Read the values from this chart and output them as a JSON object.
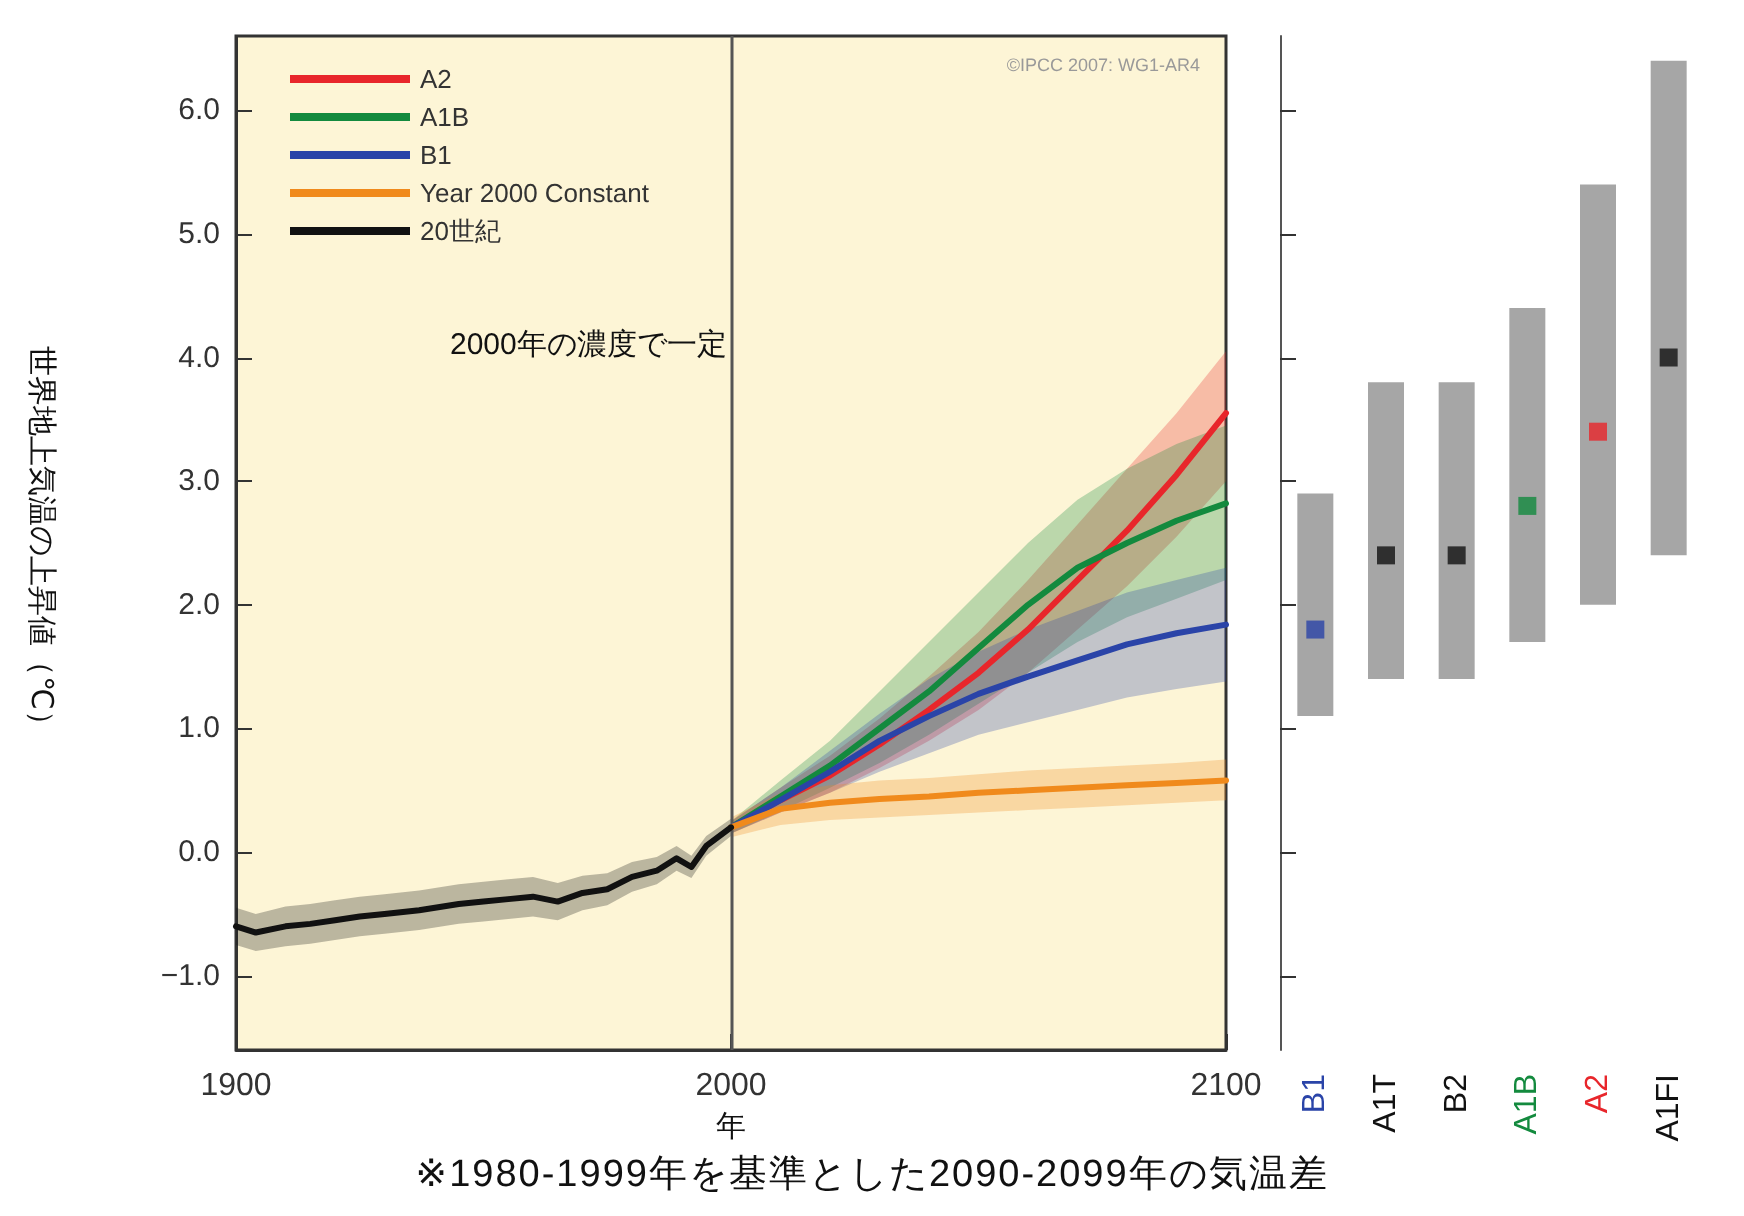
{
  "chart_data": [
    {
      "type": "line",
      "ylabel": "世界地上気温の上昇値（℃）",
      "xlabel": "年",
      "xlim": [
        1900,
        2100
      ],
      "xticks": [
        1900,
        2000,
        2100
      ],
      "ylim": [
        -1.6,
        6.6
      ],
      "yticks": [
        {
          "value": -1,
          "label": "−1.0"
        },
        {
          "value": 0,
          "label": "0.0"
        },
        {
          "value": 1,
          "label": "1.0"
        },
        {
          "value": 2,
          "label": "2.0"
        },
        {
          "value": 3,
          "label": "3.0"
        },
        {
          "value": 4,
          "label": "4.0"
        },
        {
          "value": 5,
          "label": "5.0"
        },
        {
          "value": 6,
          "label": "6.0"
        }
      ],
      "grid": false,
      "legend": "top left",
      "marker": "none",
      "line_style": "solid",
      "ref_lines": [
        {
          "axis": "x",
          "value": 2000,
          "color": "#555555"
        }
      ],
      "annotations": [
        "2000年の濃度で一定",
        "©IPCC 2007: WG1-AR4",
        "※1980-1999年を基準とした2090-2099年の気温差"
      ],
      "series": [
        {
          "name": "A2",
          "color": "#e8262b",
          "x": [
            2000,
            2010,
            2020,
            2030,
            2040,
            2050,
            2060,
            2070,
            2080,
            2090,
            2100
          ],
          "values": [
            0.2,
            0.42,
            0.62,
            0.87,
            1.15,
            1.45,
            1.8,
            2.2,
            2.6,
            3.05,
            3.55
          ],
          "lower": [
            0.15,
            0.32,
            0.48,
            0.68,
            0.9,
            1.15,
            1.45,
            1.8,
            2.15,
            2.55,
            3.0
          ],
          "upper": [
            0.25,
            0.52,
            0.78,
            1.08,
            1.42,
            1.78,
            2.2,
            2.65,
            3.1,
            3.55,
            4.05
          ]
        },
        {
          "name": "A1B",
          "color": "#138a3e",
          "x": [
            2000,
            2010,
            2020,
            2030,
            2040,
            2050,
            2060,
            2070,
            2080,
            2090,
            2100
          ],
          "values": [
            0.2,
            0.45,
            0.7,
            1.0,
            1.3,
            1.65,
            2.0,
            2.3,
            2.5,
            2.68,
            2.82
          ],
          "lower": [
            0.15,
            0.33,
            0.52,
            0.72,
            0.95,
            1.2,
            1.45,
            1.7,
            1.9,
            2.05,
            2.2
          ],
          "upper": [
            0.25,
            0.58,
            0.9,
            1.3,
            1.7,
            2.1,
            2.5,
            2.85,
            3.1,
            3.3,
            3.45
          ]
        },
        {
          "name": "B1",
          "color": "#2a44a8",
          "x": [
            2000,
            2010,
            2020,
            2030,
            2040,
            2050,
            2060,
            2070,
            2080,
            2090,
            2100
          ],
          "values": [
            0.2,
            0.42,
            0.65,
            0.9,
            1.1,
            1.28,
            1.42,
            1.55,
            1.68,
            1.77,
            1.84
          ],
          "lower": [
            0.15,
            0.32,
            0.48,
            0.65,
            0.8,
            0.95,
            1.05,
            1.15,
            1.25,
            1.32,
            1.38
          ],
          "upper": [
            0.25,
            0.52,
            0.82,
            1.12,
            1.4,
            1.62,
            1.8,
            1.95,
            2.1,
            2.2,
            2.3
          ]
        },
        {
          "name": "Year 2000 Constant",
          "color": "#f08a1c",
          "x": [
            2000,
            2010,
            2020,
            2030,
            2040,
            2050,
            2060,
            2070,
            2080,
            2090,
            2100
          ],
          "values": [
            0.2,
            0.35,
            0.4,
            0.43,
            0.45,
            0.48,
            0.5,
            0.52,
            0.54,
            0.56,
            0.58
          ],
          "lower": [
            0.12,
            0.22,
            0.26,
            0.28,
            0.3,
            0.32,
            0.34,
            0.36,
            0.38,
            0.4,
            0.42
          ],
          "upper": [
            0.28,
            0.48,
            0.54,
            0.58,
            0.6,
            0.63,
            0.66,
            0.68,
            0.7,
            0.72,
            0.75
          ]
        },
        {
          "name": "20世紀",
          "color": "#111111",
          "x": [
            1900,
            1904,
            1910,
            1915,
            1920,
            1925,
            1930,
            1937,
            1945,
            1950,
            1955,
            1960,
            1965,
            1970,
            1975,
            1980,
            1985,
            1989,
            1992,
            1995,
            2000
          ],
          "values": [
            -0.6,
            -0.65,
            -0.6,
            -0.58,
            -0.55,
            -0.52,
            -0.5,
            -0.47,
            -0.42,
            -0.4,
            -0.38,
            -0.36,
            -0.4,
            -0.33,
            -0.3,
            -0.2,
            -0.15,
            -0.05,
            -0.12,
            0.05,
            0.2
          ],
          "lower": [
            -0.75,
            -0.8,
            -0.76,
            -0.74,
            -0.71,
            -0.68,
            -0.66,
            -0.63,
            -0.58,
            -0.56,
            -0.54,
            -0.52,
            -0.55,
            -0.47,
            -0.43,
            -0.32,
            -0.26,
            -0.15,
            -0.21,
            -0.03,
            0.13
          ],
          "upper": [
            -0.45,
            -0.5,
            -0.44,
            -0.42,
            -0.39,
            -0.36,
            -0.34,
            -0.31,
            -0.26,
            -0.24,
            -0.22,
            -0.2,
            -0.25,
            -0.19,
            -0.17,
            -0.08,
            -0.04,
            0.05,
            -0.03,
            0.13,
            0.27
          ]
        }
      ]
    },
    {
      "type": "bar",
      "categories": [
        "B1",
        "A1T",
        "B2",
        "A1B",
        "A2",
        "A1FI"
      ],
      "ylim": [
        -1.6,
        6.6
      ],
      "yticks": [
        -1,
        0,
        1,
        2,
        3,
        4,
        5,
        6
      ],
      "tick_labels": "x",
      "series": [
        {
          "type": "bar",
          "color": "#a6a6a6",
          "base": [
            1.1,
            1.4,
            1.4,
            1.7,
            2.0,
            2.4
          ],
          "values": [
            1.8,
            2.4,
            2.4,
            2.7,
            3.4,
            4.0
          ]
        },
        {
          "type": "scatter",
          "marker": "square",
          "x": [
            "B1",
            "A1T",
            "B2",
            "A1B",
            "A2",
            "A1FI"
          ],
          "values": [
            1.8,
            2.4,
            2.4,
            2.8,
            3.4,
            4.0
          ],
          "colors": [
            "#2a44a8",
            "#111111",
            "#111111",
            "#138a3e",
            "#e8262b",
            "#111111"
          ]
        }
      ]
    }
  ]
}
